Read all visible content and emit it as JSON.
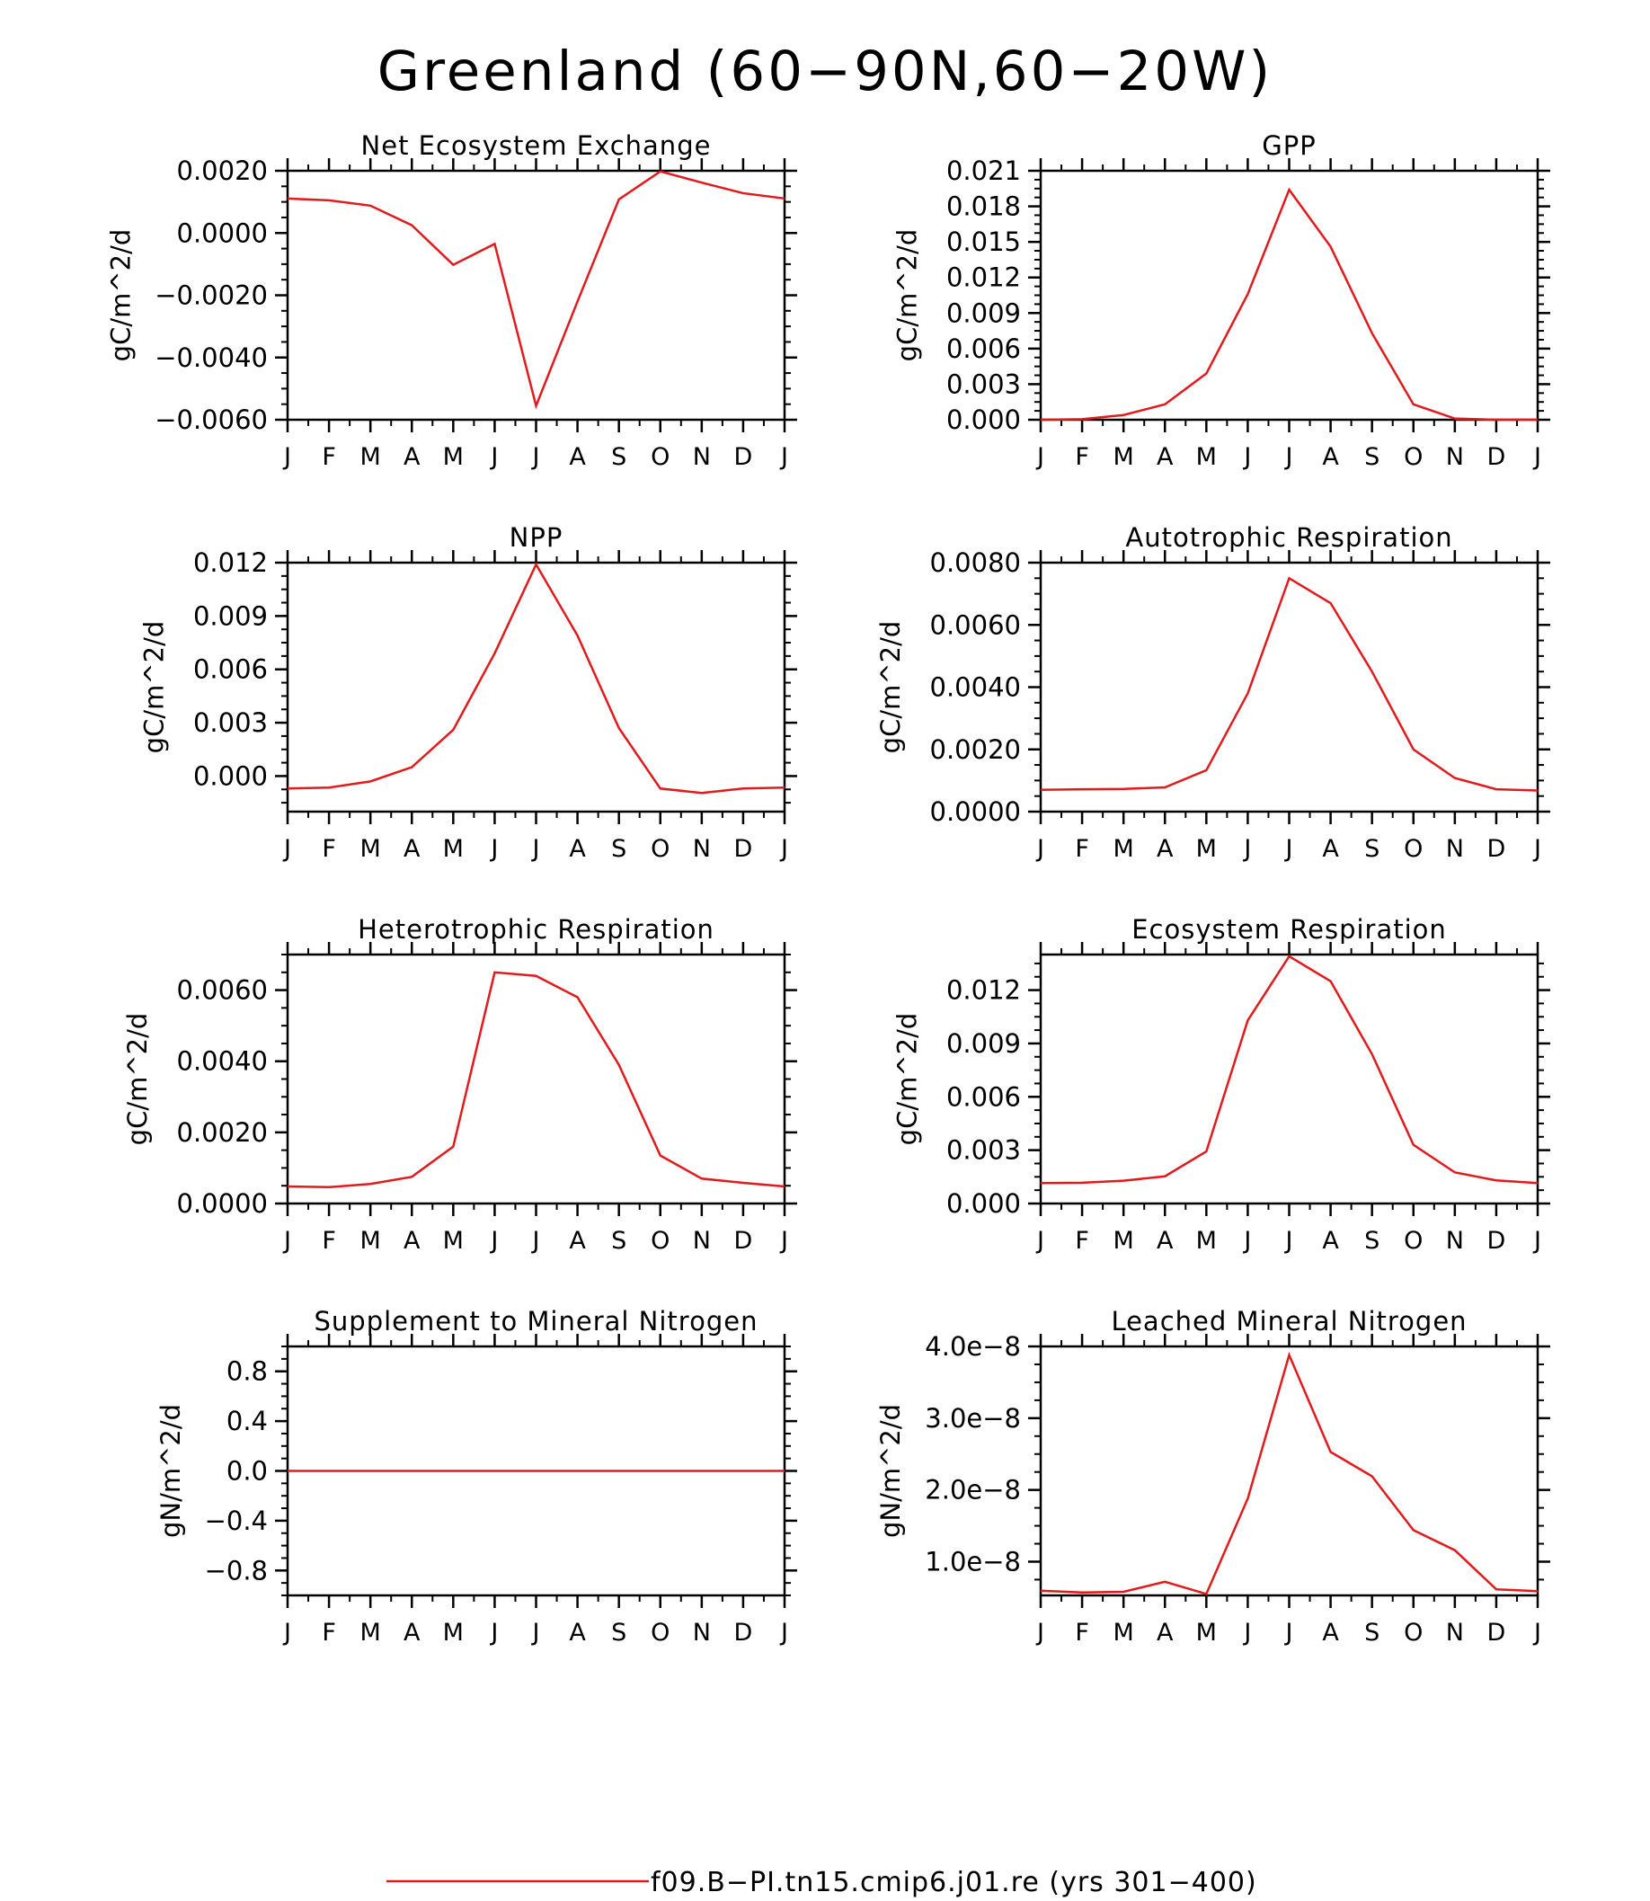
{
  "figure": {
    "title": "Greenland (60−90N,60−20W)",
    "series_color": "#e31a1c",
    "axis_color": "#000000"
  },
  "legend": {
    "label": "f09.B−PI.tn15.cmip6.j01.re (yrs 301−400)",
    "placement": "bottom-center"
  },
  "chart_data": [
    {
      "type": "line",
      "title": "Net Ecosystem Exchange",
      "ylabel": "gC/m^2/d",
      "x": [
        "J",
        "F",
        "M",
        "A",
        "M",
        "J",
        "J",
        "A",
        "S",
        "O",
        "N",
        "D",
        "J"
      ],
      "series": [
        {
          "values": [
            0.00111,
            0.00105,
            0.00088,
            0.00025,
            -0.00102,
            -0.00035,
            -0.00555,
            -0.0022,
            0.00108,
            0.00198,
            0.00162,
            0.00128,
            0.00111
          ]
        }
      ],
      "ylim": [
        -0.006,
        0.002
      ],
      "yticks": [
        {
          "value": -0.006,
          "label": "−0.0060"
        },
        {
          "value": -0.004,
          "label": "−0.0040"
        },
        {
          "value": -0.002,
          "label": "−0.0020"
        },
        {
          "value": 0.0,
          "label": "0.0000"
        },
        {
          "value": 0.002,
          "label": "0.0020"
        }
      ]
    },
    {
      "type": "line",
      "title": "GPP",
      "ylabel": "gC/m^2/d",
      "x": [
        "J",
        "F",
        "M",
        "A",
        "M",
        "J",
        "J",
        "A",
        "S",
        "O",
        "N",
        "D",
        "J"
      ],
      "series": [
        {
          "values": [
            0.0,
            5e-05,
            0.0004,
            0.0013,
            0.0039,
            0.0106,
            0.0194,
            0.0146,
            0.0073,
            0.0013,
            0.0001,
            0.0,
            0.0
          ]
        }
      ],
      "ylim": [
        0,
        0.021
      ],
      "yticks": [
        {
          "value": 0.0,
          "label": "0.000"
        },
        {
          "value": 0.003,
          "label": "0.003"
        },
        {
          "value": 0.006,
          "label": "0.006"
        },
        {
          "value": 0.009,
          "label": "0.009"
        },
        {
          "value": 0.012,
          "label": "0.012"
        },
        {
          "value": 0.015,
          "label": "0.015"
        },
        {
          "value": 0.018,
          "label": "0.018"
        },
        {
          "value": 0.021,
          "label": "0.021"
        }
      ]
    },
    {
      "type": "line",
      "title": "NPP",
      "ylabel": "gC/m^2/d",
      "x": [
        "J",
        "F",
        "M",
        "A",
        "M",
        "J",
        "J",
        "A",
        "S",
        "O",
        "N",
        "D",
        "J"
      ],
      "series": [
        {
          "values": [
            -0.0007,
            -0.00065,
            -0.0003,
            0.0005,
            0.0026,
            0.0069,
            0.0119,
            0.0079,
            0.0027,
            -0.0007,
            -0.00095,
            -0.0007,
            -0.00065
          ]
        }
      ],
      "ylim": [
        -0.002,
        0.012
      ],
      "yticks": [
        {
          "value": 0.0,
          "label": "0.000"
        },
        {
          "value": 0.003,
          "label": "0.003"
        },
        {
          "value": 0.006,
          "label": "0.006"
        },
        {
          "value": 0.009,
          "label": "0.009"
        },
        {
          "value": 0.012,
          "label": "0.012"
        }
      ]
    },
    {
      "type": "line",
      "title": "Autotrophic Respiration",
      "ylabel": "gC/m^2/d",
      "x": [
        "J",
        "F",
        "M",
        "A",
        "M",
        "J",
        "J",
        "A",
        "S",
        "O",
        "N",
        "D",
        "J"
      ],
      "series": [
        {
          "values": [
            0.0007,
            0.00072,
            0.00073,
            0.00078,
            0.00133,
            0.0038,
            0.0075,
            0.0067,
            0.0045,
            0.002,
            0.00108,
            0.00072,
            0.00068
          ]
        }
      ],
      "ylim": [
        0,
        0.008
      ],
      "yticks": [
        {
          "value": 0.0,
          "label": "0.0000"
        },
        {
          "value": 0.002,
          "label": "0.0020"
        },
        {
          "value": 0.004,
          "label": "0.0040"
        },
        {
          "value": 0.006,
          "label": "0.0060"
        },
        {
          "value": 0.008,
          "label": "0.0080"
        }
      ]
    },
    {
      "type": "line",
      "title": "Heterotrophic Respiration",
      "ylabel": "gC/m^2/d",
      "x": [
        "J",
        "F",
        "M",
        "A",
        "M",
        "J",
        "J",
        "A",
        "S",
        "O",
        "N",
        "D",
        "J"
      ],
      "series": [
        {
          "values": [
            0.00048,
            0.00046,
            0.00055,
            0.00075,
            0.0016,
            0.0065,
            0.0064,
            0.0058,
            0.0039,
            0.00135,
            0.0007,
            0.00058,
            0.00048
          ]
        }
      ],
      "ylim": [
        0,
        0.007
      ],
      "yticks": [
        {
          "value": 0.0,
          "label": "0.0000"
        },
        {
          "value": 0.002,
          "label": "0.0020"
        },
        {
          "value": 0.004,
          "label": "0.0040"
        },
        {
          "value": 0.006,
          "label": "0.0060"
        }
      ]
    },
    {
      "type": "line",
      "title": "Ecosystem Respiration",
      "ylabel": "gC/m^2/d",
      "x": [
        "J",
        "F",
        "M",
        "A",
        "M",
        "J",
        "J",
        "A",
        "S",
        "O",
        "N",
        "D",
        "J"
      ],
      "series": [
        {
          "values": [
            0.00115,
            0.00117,
            0.00128,
            0.00153,
            0.00293,
            0.0103,
            0.0139,
            0.0125,
            0.0084,
            0.0033,
            0.00175,
            0.0013,
            0.00115
          ]
        }
      ],
      "ylim": [
        0,
        0.014
      ],
      "yticks": [
        {
          "value": 0.0,
          "label": "0.000"
        },
        {
          "value": 0.003,
          "label": "0.003"
        },
        {
          "value": 0.006,
          "label": "0.006"
        },
        {
          "value": 0.009,
          "label": "0.009"
        },
        {
          "value": 0.012,
          "label": "0.012"
        }
      ]
    },
    {
      "type": "line",
      "title": "Supplement to Mineral Nitrogen",
      "ylabel": "gN/m^2/d",
      "x": [
        "J",
        "F",
        "M",
        "A",
        "M",
        "J",
        "J",
        "A",
        "S",
        "O",
        "N",
        "D",
        "J"
      ],
      "series": [
        {
          "values": [
            0,
            0,
            0,
            0,
            0,
            0,
            0,
            0,
            0,
            0,
            0,
            0,
            0
          ]
        }
      ],
      "ylim": [
        -1.0,
        1.0
      ],
      "yticks": [
        {
          "value": -0.8,
          "label": "−0.8"
        },
        {
          "value": -0.4,
          "label": "−0.4"
        },
        {
          "value": 0.0,
          "label": "0.0"
        },
        {
          "value": 0.4,
          "label": "0.4"
        },
        {
          "value": 0.8,
          "label": "0.8"
        }
      ]
    },
    {
      "type": "line",
      "title": "Leached Mineral Nitrogen",
      "ylabel": "gN/m^2/d",
      "x": [
        "J",
        "F",
        "M",
        "A",
        "M",
        "J",
        "J",
        "A",
        "S",
        "O",
        "N",
        "D",
        "J"
      ],
      "series": [
        {
          "values": [
            5.95e-09,
            5.7e-09,
            5.8e-09,
            7.2e-09,
            5.5e-09,
            1.88e-08,
            3.88e-08,
            2.53e-08,
            2.19e-08,
            1.44e-08,
            1.16e-08,
            6.15e-09,
            5.9e-09
          ]
        }
      ],
      "ylim": [
        5.3e-09,
        4e-08
      ],
      "yticks": [
        {
          "value": 1e-08,
          "label": "1.0e−8"
        },
        {
          "value": 2e-08,
          "label": "2.0e−8"
        },
        {
          "value": 3e-08,
          "label": "3.0e−8"
        },
        {
          "value": 4e-08,
          "label": "4.0e−8"
        }
      ]
    }
  ]
}
